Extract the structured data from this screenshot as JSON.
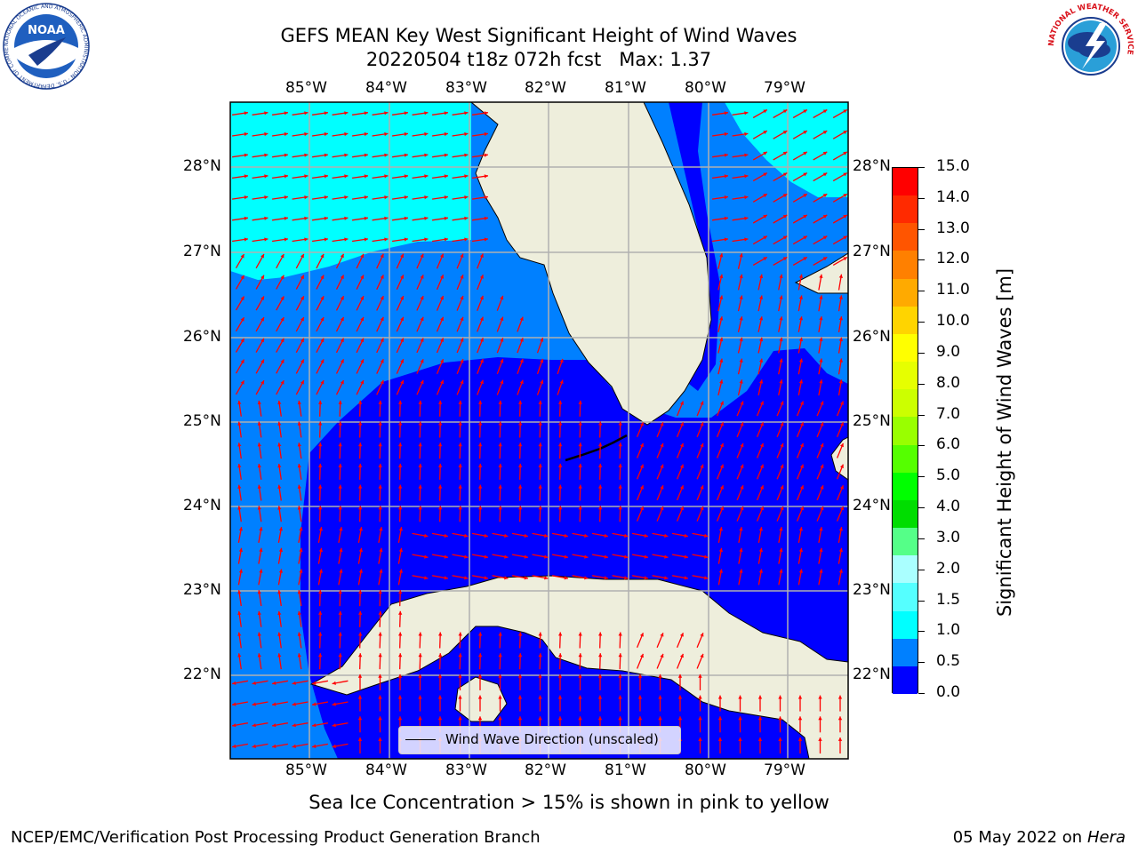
{
  "title": {
    "line1": "GEFS MEAN Key West Significant Height of Wind Waves",
    "line2": "20220504 t18z 072h fcst   Max: 1.37"
  },
  "map": {
    "lon_labels": [
      "85°W",
      "84°W",
      "83°W",
      "82°W",
      "81°W",
      "80°W",
      "79°W"
    ],
    "lat_labels": [
      "28°N",
      "27°N",
      "26°N",
      "25°N",
      "24°N",
      "23°N",
      "22°N"
    ],
    "legend_label": "Wind Wave Direction (unscaled)",
    "colors": {
      "land": "#eeeedc",
      "band_0_05": "#0000ff",
      "band_05_10": "#0080ff",
      "band_10_15": "#00ffff",
      "arrow": "#ff0000",
      "grid": "#b0b0b0"
    }
  },
  "colorbar": {
    "label": "Significant Height of Wind Waves [m]",
    "ticks": [
      "15.0",
      "14.0",
      "13.0",
      "12.0",
      "11.0",
      "10.0",
      "9.0",
      "8.0",
      "7.0",
      "6.0",
      "5.0",
      "4.0",
      "3.0",
      "2.0",
      "1.5",
      "1.0",
      "0.5",
      "0.0"
    ],
    "colors_top_to_bottom": [
      "#ff0000",
      "#ff2a00",
      "#ff5500",
      "#ff8000",
      "#ffaa00",
      "#ffd400",
      "#ffff00",
      "#e6ff00",
      "#ccff00",
      "#99ff00",
      "#55ff00",
      "#00ff00",
      "#00dd00",
      "#55ff88",
      "#aaffff",
      "#55ffff",
      "#00ffff",
      "#0080ff",
      "#0000ff"
    ]
  },
  "note": "Sea Ice Concentration > 15% is shown in pink to yellow",
  "footer": {
    "left": "NCEP/EMC/Verification Post Processing Product Generation Branch",
    "date": "05 May 2022 on",
    "machine": "Hera"
  },
  "logos": {
    "noaa_text": "NOAA",
    "noaa_ring": "NATIONAL OCEANIC AND ATMOSPHERIC ADMINISTRATION · U.S. DEPARTMENT OF COMMERCE",
    "nws_ring": "NATIONAL WEATHER SERVICE"
  }
}
